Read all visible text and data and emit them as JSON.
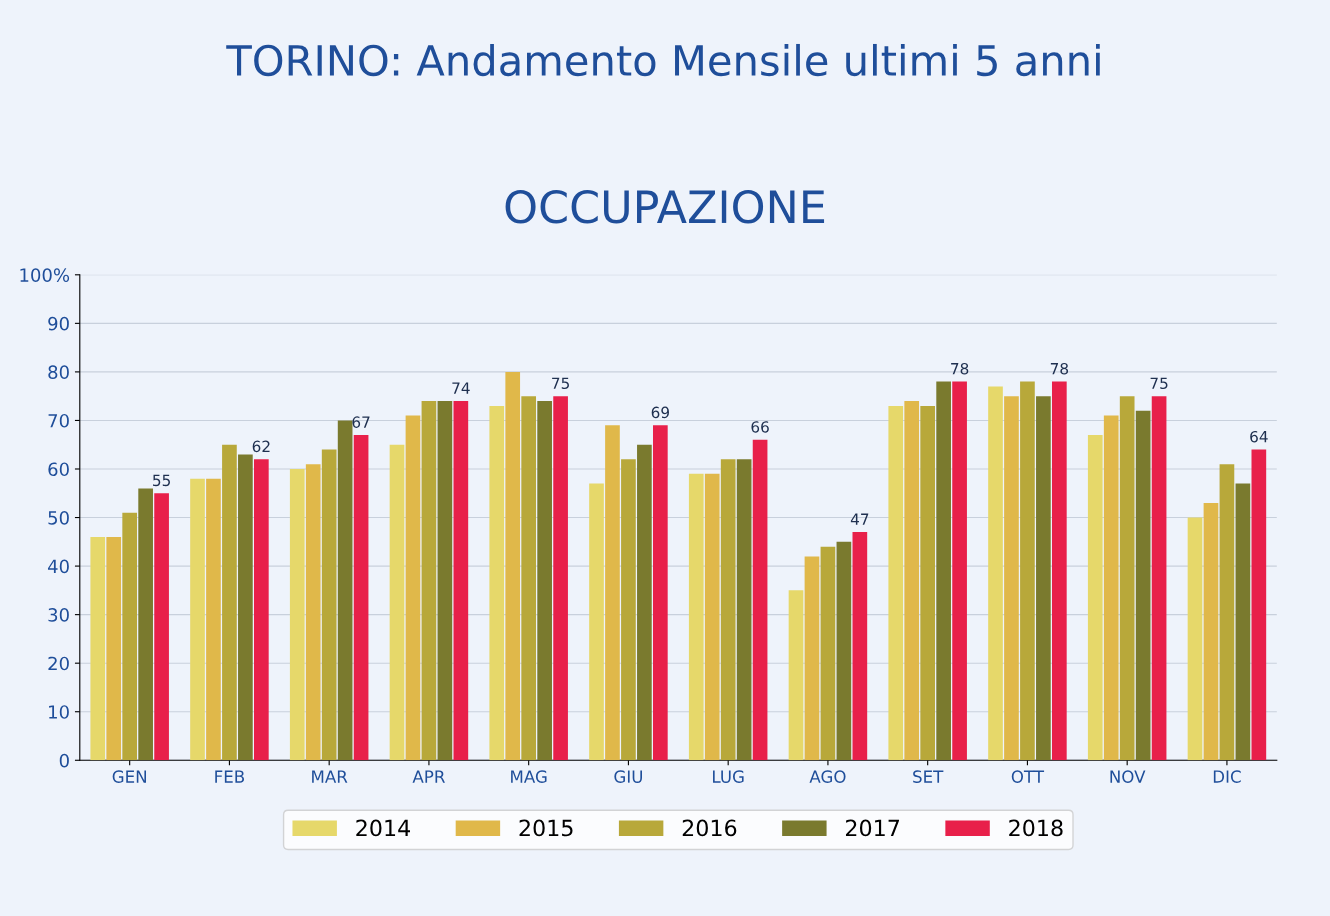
{
  "chart_data": {
    "type": "bar",
    "title": "TORINO: Andamento Mensile ultimi 5 anni",
    "subtitle": "OCCUPAZIONE",
    "categories": [
      "GEN",
      "FEB",
      "MAR",
      "APR",
      "MAG",
      "GIU",
      "LUG",
      "AGO",
      "SET",
      "OTT",
      "NOV",
      "DIC"
    ],
    "series": [
      {
        "name": "2014",
        "color": "#e6d86a",
        "values": [
          46,
          58,
          60,
          65,
          73,
          57,
          59,
          35,
          73,
          77,
          67,
          50
        ]
      },
      {
        "name": "2015",
        "color": "#e0b84a",
        "values": [
          46,
          58,
          61,
          71,
          80,
          69,
          59,
          42,
          74,
          75,
          71,
          53
        ]
      },
      {
        "name": "2016",
        "color": "#b8a83a",
        "values": [
          51,
          65,
          64,
          74,
          75,
          62,
          62,
          44,
          73,
          78,
          75,
          61
        ]
      },
      {
        "name": "2017",
        "color": "#7a7a2e",
        "values": [
          56,
          63,
          70,
          74,
          74,
          65,
          62,
          45,
          78,
          75,
          72,
          57
        ]
      },
      {
        "name": "2018",
        "color": "#e8204a",
        "values": [
          55,
          62,
          67,
          74,
          75,
          69,
          66,
          47,
          78,
          78,
          75,
          64
        ],
        "value_labels": [
          "55",
          "62",
          "67",
          "74",
          "75",
          "69",
          "66",
          "47",
          "78",
          "78",
          "75",
          "64"
        ]
      }
    ],
    "ylim": [
      0,
      100
    ],
    "yticks": [
      0,
      10,
      20,
      30,
      40,
      50,
      60,
      70,
      80,
      90,
      {
        "value": 100,
        "label": "100%"
      }
    ],
    "grid": "y",
    "legend": "bottom"
  }
}
